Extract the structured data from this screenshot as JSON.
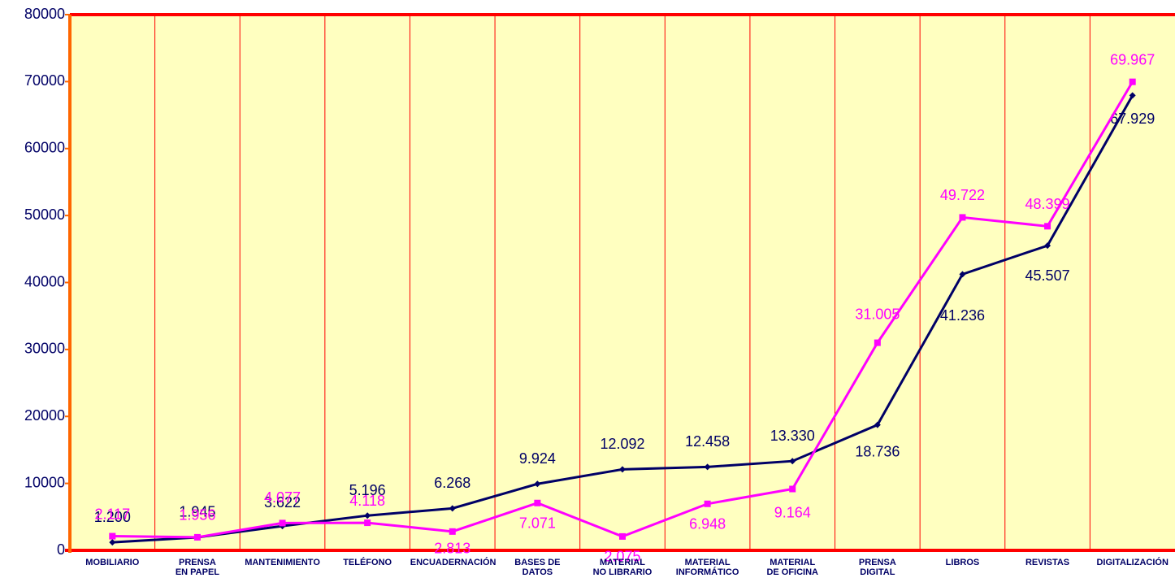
{
  "chart_data": {
    "type": "line",
    "categories": [
      "MOBILIARIO",
      "PRENSA\nEN PAPEL",
      "MANTENIMIENTO",
      "TELÉFONO",
      "ENCUADERNACIÓN",
      "BASES DE\nDATOS",
      "MATERIAL\nNO LIBRARIO",
      "MATERIAL\nINFORMÁTICO",
      "MATERIAL\nDE OFICINA",
      "PRENSA\nDIGITAL",
      "LIBROS",
      "REVISTAS",
      "DIGITALIZACIÓN"
    ],
    "series": [
      {
        "color": "#000066",
        "marker": "diamond",
        "values": [
          1200,
          1945,
          3622,
          5196,
          6268,
          9924,
          12092,
          12458,
          13330,
          18736,
          41236,
          45507,
          67929
        ],
        "value_labels": [
          "1.200",
          "1.945",
          "3.622",
          "5.196",
          "6.268",
          "9.924",
          "12.092",
          "12.458",
          "13.330",
          "18.736",
          "41.236",
          "45.507",
          "67.929"
        ]
      },
      {
        "color": "#ff00ff",
        "marker": "square",
        "values": [
          2117,
          1956,
          4077,
          4118,
          2813,
          7071,
          2075,
          6948,
          9164,
          31005,
          49722,
          48399,
          69967
        ],
        "value_labels": [
          "2.117",
          "1.956",
          "4.077",
          "4.118",
          "2.813",
          "7.071",
          "2.075",
          "6.948",
          "9.164",
          "31.005",
          "49.722",
          "48.399",
          "69.967"
        ]
      }
    ],
    "ylim": [
      0,
      80000
    ],
    "yticks": [
      0,
      10000,
      20000,
      30000,
      40000,
      50000,
      60000,
      70000,
      80000
    ],
    "grid": true
  }
}
